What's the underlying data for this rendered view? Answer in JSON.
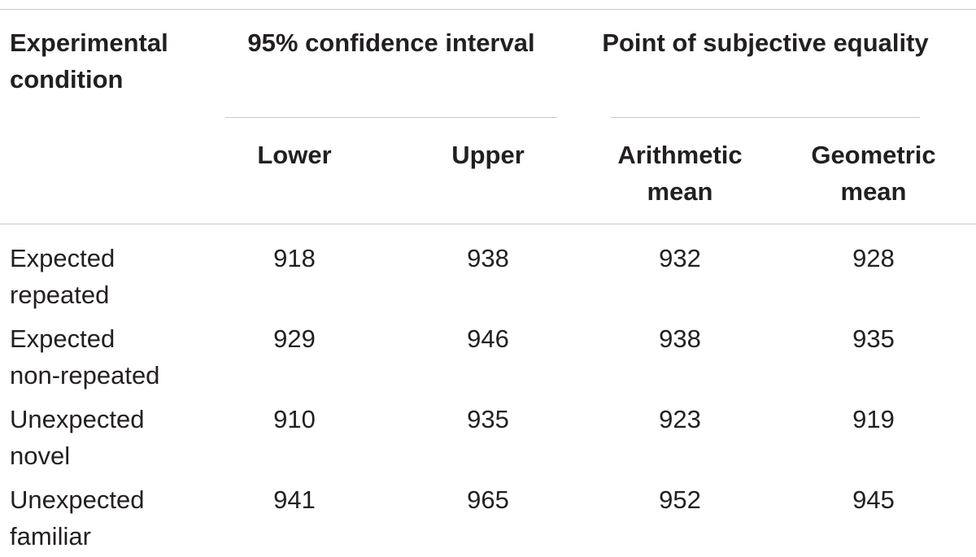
{
  "table": {
    "headers": {
      "condition": [
        "Experimental",
        "condition"
      ],
      "ci_group": "95% confidence interval",
      "pse_group": "Point of subjective equality",
      "lower": "Lower",
      "upper": "Upper",
      "arith": [
        "Arithmetic",
        "mean"
      ],
      "geo": [
        "Geometric",
        "mean"
      ]
    },
    "rows": [
      {
        "condition": [
          "Expected",
          "repeated"
        ],
        "lower": "918",
        "upper": "938",
        "arith": "932",
        "geo": "928"
      },
      {
        "condition": [
          "Expected",
          "non-repeated"
        ],
        "lower": "929",
        "upper": "946",
        "arith": "938",
        "geo": "935"
      },
      {
        "condition": [
          "Unexpected",
          "novel"
        ],
        "lower": "910",
        "upper": "935",
        "arith": "923",
        "geo": "919"
      },
      {
        "condition": [
          "Unexpected",
          "familiar"
        ],
        "lower": "941",
        "upper": "965",
        "arith": "952",
        "geo": "945"
      }
    ]
  }
}
